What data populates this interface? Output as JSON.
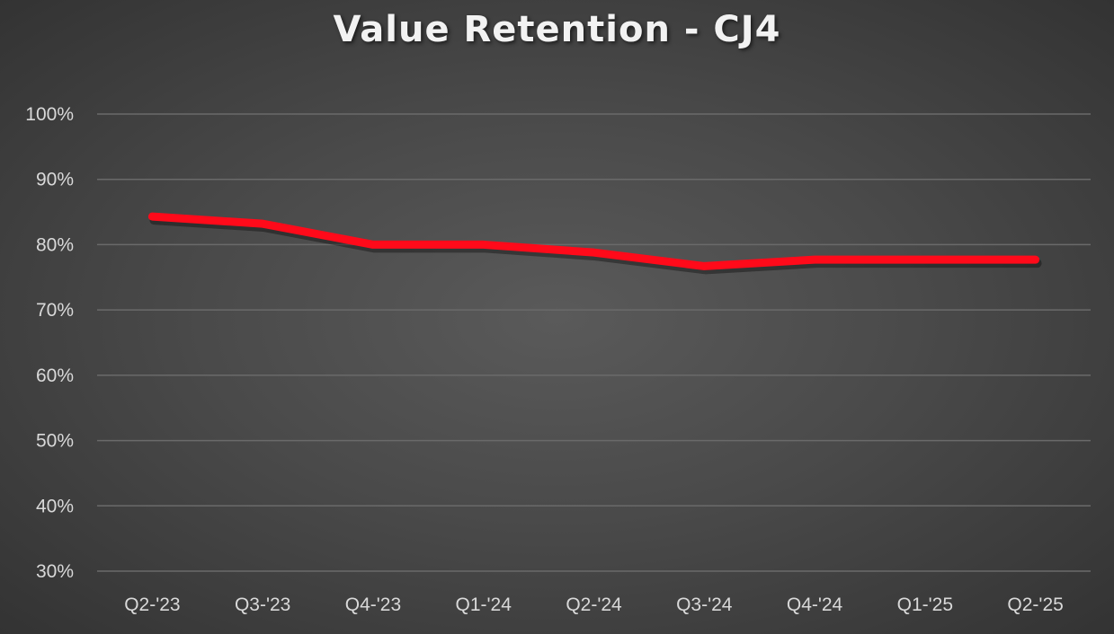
{
  "title": "Value Retention - CJ4",
  "colors": {
    "line": "#ff0a1a",
    "grid": "#6a6a6a",
    "text": "#d9d9d9",
    "title": "#f2f2f2"
  },
  "chart_data": {
    "type": "line",
    "title": "Value Retention - CJ4",
    "xlabel": "",
    "ylabel": "",
    "categories": [
      "Q2-'23",
      "Q3-'23",
      "Q4-'23",
      "Q1-'24",
      "Q2-'24",
      "Q3-'24",
      "Q4-'24",
      "Q1-'25",
      "Q2-'25"
    ],
    "series": [
      {
        "name": "CJ4",
        "values": [
          84.3,
          83.2,
          80.0,
          80.0,
          78.8,
          76.7,
          77.7,
          77.7,
          77.7
        ]
      }
    ],
    "ylim": [
      30,
      100
    ],
    "yticks": [
      "100%",
      "90%",
      "80%",
      "70%",
      "60%",
      "50%",
      "40%",
      "30%"
    ],
    "grid": true,
    "legend": "none"
  }
}
